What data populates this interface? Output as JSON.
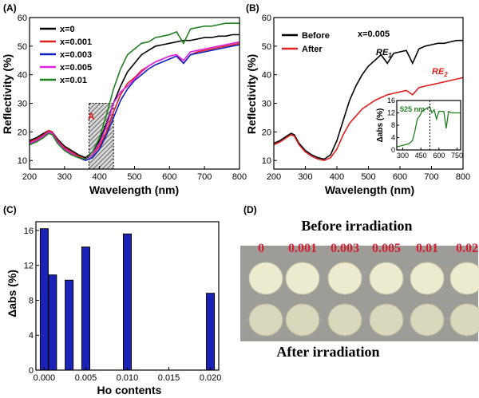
{
  "chart_data": [
    {
      "panel": "(A)",
      "type": "line",
      "xlabel": "Wavelength (nm)",
      "ylabel": "Reflectivity (%)",
      "xlim": [
        200,
        800
      ],
      "ylim": [
        7,
        60
      ],
      "xticks": [
        200,
        300,
        400,
        500,
        600,
        700,
        800
      ],
      "yticks": [
        10,
        20,
        30,
        40,
        50,
        60
      ],
      "legend_position": "top-left",
      "annotation": "A",
      "shaded_region": [
        370,
        440
      ],
      "series": [
        {
          "name": "x=0",
          "color": "#000000",
          "x": [
            200,
            220,
            240,
            255,
            265,
            280,
            300,
            320,
            340,
            360,
            380,
            400,
            420,
            440,
            460,
            480,
            500,
            520,
            540,
            560,
            580,
            600,
            620,
            640,
            660,
            680,
            700,
            720,
            740,
            760,
            780,
            800
          ],
          "y": [
            17,
            18,
            19.5,
            20.5,
            20,
            17.5,
            15,
            13.5,
            12,
            11,
            13,
            17,
            23,
            30,
            36,
            41,
            44,
            47,
            48.5,
            50,
            50.5,
            51,
            51.5,
            52,
            52,
            52.5,
            53,
            53,
            53.5,
            53.5,
            54,
            54
          ]
        },
        {
          "name": "x=0.001",
          "color": "#e02020",
          "x": [
            200,
            220,
            240,
            255,
            265,
            280,
            300,
            320,
            340,
            360,
            380,
            400,
            420,
            440,
            460,
            480,
            500,
            520,
            540,
            560,
            580,
            600,
            620,
            640,
            660,
            680,
            700,
            720,
            740,
            760,
            780,
            800
          ],
          "y": [
            16.5,
            17.5,
            19,
            20.5,
            20,
            17,
            14.5,
            13,
            11.5,
            10.5,
            12,
            15,
            20,
            27,
            33,
            37,
            39,
            41.5,
            43,
            44.5,
            45.5,
            46.5,
            47,
            44,
            47,
            48,
            48.5,
            49,
            49.5,
            50,
            50.5,
            51
          ]
        },
        {
          "name": "x=0.003",
          "color": "#1020c0",
          "x": [
            200,
            220,
            240,
            255,
            265,
            280,
            300,
            320,
            340,
            360,
            380,
            400,
            420,
            440,
            460,
            480,
            500,
            520,
            540,
            560,
            580,
            600,
            620,
            640,
            660,
            680,
            700,
            720,
            740,
            760,
            780,
            800
          ],
          "y": [
            16,
            17,
            18.5,
            20,
            19.5,
            16.5,
            14,
            12.5,
            11,
            10,
            11,
            14,
            19,
            25,
            31,
            35,
            38,
            40,
            42,
            43.5,
            44.5,
            45.5,
            46.5,
            44,
            47,
            47.5,
            48,
            48.5,
            49,
            49.5,
            50,
            50.5
          ]
        },
        {
          "name": "x=0.005",
          "color": "#e020e0",
          "x": [
            200,
            220,
            240,
            255,
            265,
            280,
            300,
            320,
            340,
            360,
            380,
            400,
            420,
            440,
            460,
            480,
            500,
            520,
            540,
            560,
            580,
            600,
            620,
            640,
            660,
            680,
            700,
            720,
            740,
            760,
            780,
            800
          ],
          "y": [
            16,
            17,
            18.5,
            20,
            19.5,
            16.5,
            14,
            12.5,
            11,
            10.5,
            12,
            16,
            22,
            30,
            34,
            36,
            38.5,
            41,
            43,
            44.5,
            45.5,
            46.5,
            47,
            45,
            48,
            48.5,
            49,
            49.5,
            50,
            50.5,
            51,
            51.5
          ]
        },
        {
          "name": "x=0.01",
          "color": "#208020",
          "x": [
            200,
            220,
            240,
            255,
            265,
            280,
            300,
            320,
            340,
            360,
            380,
            400,
            420,
            440,
            460,
            480,
            500,
            520,
            540,
            560,
            580,
            600,
            620,
            640,
            660,
            680,
            700,
            720,
            740,
            760,
            780,
            800
          ],
          "y": [
            15.5,
            16.5,
            18,
            19.5,
            19,
            16,
            13.5,
            12,
            11,
            10.5,
            13,
            18,
            26,
            35,
            42,
            47,
            49,
            51,
            51.5,
            53,
            53.5,
            54,
            55,
            51,
            56,
            56.5,
            57,
            57,
            57.5,
            58,
            58,
            58
          ]
        }
      ]
    },
    {
      "panel": "(B)",
      "type": "line",
      "xlabel": "Wavelength (nm)",
      "ylabel": "Reflectivity (%)",
      "xlim": [
        200,
        800
      ],
      "ylim": [
        7,
        60
      ],
      "xticks": [
        200,
        300,
        400,
        500,
        600,
        700,
        800
      ],
      "yticks": [
        10,
        20,
        30,
        40,
        50,
        60
      ],
      "title_text": "x=0.005",
      "legend_position": "top-left",
      "annotations": [
        "RE1",
        "RE2"
      ],
      "series": [
        {
          "name": "Before",
          "color": "#000000",
          "x": [
            200,
            220,
            240,
            255,
            265,
            280,
            300,
            320,
            340,
            360,
            380,
            400,
            420,
            440,
            460,
            480,
            500,
            520,
            540,
            560,
            580,
            600,
            620,
            640,
            660,
            680,
            700,
            720,
            740,
            760,
            780,
            800
          ],
          "y": [
            16,
            17,
            18.5,
            19.5,
            19,
            16,
            13.5,
            12,
            11,
            10.5,
            12,
            17,
            24,
            31,
            36,
            40,
            43,
            45,
            47,
            44,
            47.5,
            48,
            48.5,
            44,
            49,
            50,
            50.5,
            51,
            51,
            51.5,
            52,
            52
          ]
        },
        {
          "name": "After",
          "color": "#e02020",
          "x": [
            200,
            220,
            240,
            255,
            265,
            280,
            300,
            320,
            340,
            360,
            380,
            400,
            420,
            440,
            460,
            480,
            500,
            520,
            540,
            560,
            580,
            600,
            620,
            640,
            660,
            680,
            700,
            720,
            740,
            760,
            780,
            800
          ],
          "y": [
            15.5,
            16.5,
            18,
            19,
            18.5,
            15.5,
            13,
            11.5,
            10.5,
            10,
            11,
            14,
            19,
            23,
            25.5,
            28,
            29.5,
            31,
            32,
            33,
            33.5,
            34,
            34.5,
            33,
            35.5,
            36,
            36.5,
            37,
            37.5,
            38,
            38.5,
            39
          ]
        }
      ],
      "inset": {
        "ylabel": "Δabs (%)",
        "xlim": [
          250,
          780
        ],
        "ylim": [
          0,
          16
        ],
        "xticks": [
          300,
          450,
          600,
          750
        ],
        "yticks": [
          0,
          4,
          8,
          12,
          16
        ],
        "annotation": "525 nm",
        "marker_x": 525,
        "series": {
          "color": "#208020",
          "x": [
            250,
            300,
            350,
            380,
            400,
            420,
            440,
            460,
            480,
            500,
            525,
            540,
            560,
            580,
            600,
            620,
            640,
            660,
            680,
            700,
            720,
            740,
            760,
            780
          ],
          "y": [
            1,
            1.5,
            2,
            3,
            6,
            10,
            11,
            12.5,
            13,
            13.5,
            14,
            12,
            13,
            10,
            12.5,
            12.5,
            12.5,
            7,
            12.5,
            12,
            12,
            12,
            12,
            12
          ]
        }
      }
    },
    {
      "panel": "(C)",
      "type": "bar",
      "xlabel": "Ho contents",
      "ylabel": "Δabs (%)",
      "xlim": [
        -0.001,
        0.021
      ],
      "ylim": [
        0,
        17
      ],
      "xticks": [
        0.0,
        0.005,
        0.01,
        0.015,
        0.02
      ],
      "xtick_labels": [
        "0.000",
        "0.005",
        "0.010",
        "0.015",
        "0.020"
      ],
      "yticks": [
        0,
        4,
        8,
        12,
        16
      ],
      "bar_color": "#1a23b8",
      "x": [
        0,
        0.001,
        0.003,
        0.005,
        0.01,
        0.02
      ],
      "values": [
        16.2,
        10.9,
        10.3,
        14.1,
        15.6,
        8.8
      ]
    }
  ],
  "panel_d": {
    "panel": "(D)",
    "before_title": "Before irradiation",
    "after_title": "After irradiation",
    "sample_labels": [
      "0",
      "0.001",
      "0.003",
      "0.005",
      "0.01",
      "0.02"
    ],
    "label_color": "#d22030",
    "background_color": "#9e9c98",
    "disc_color_before": "#ecebcf",
    "disc_color_after": "#d9d8bc"
  }
}
